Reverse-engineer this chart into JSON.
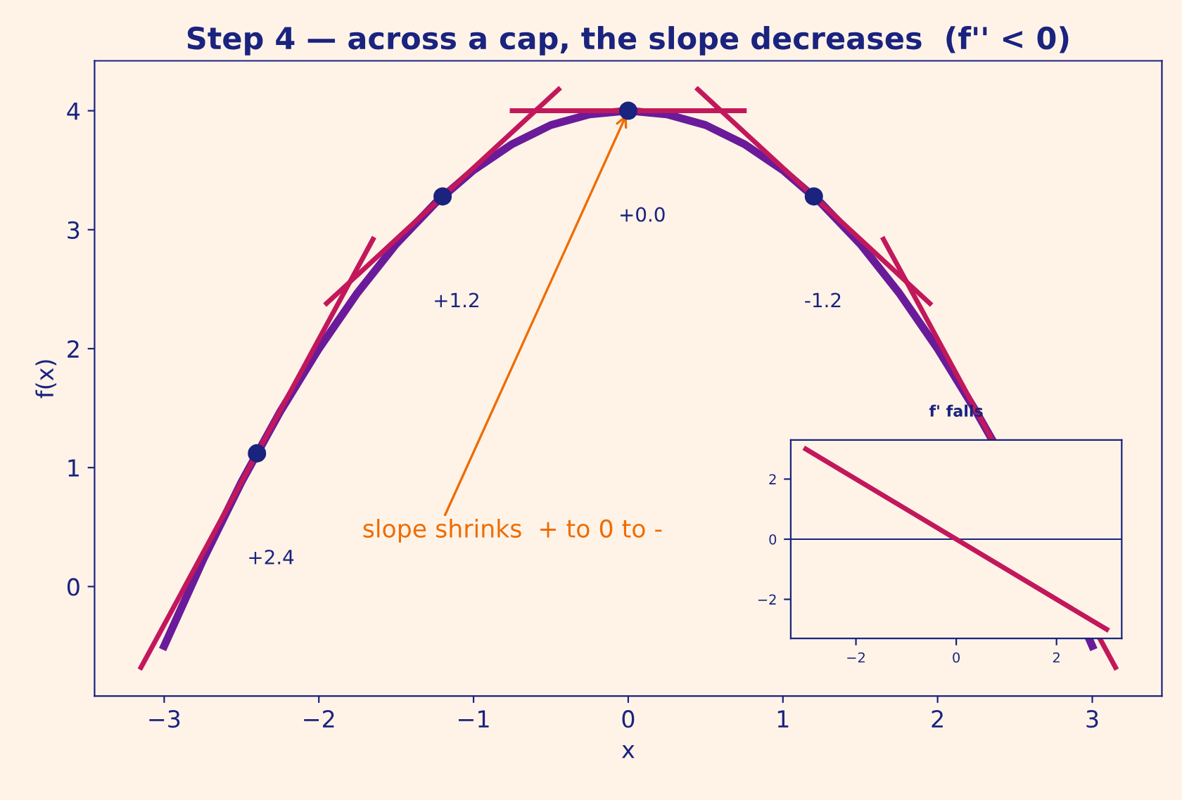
{
  "chart_data": [
    {
      "type": "line",
      "title": "Step 4 — across a cap, the slope decreases  (f'' < 0)",
      "xlabel": "x",
      "ylabel": "f(x)",
      "xlim": [
        -3.45,
        3.45
      ],
      "ylim": [
        -0.92,
        4.42
      ],
      "xticks": [
        {
          "value": -3,
          "label": "−3"
        },
        {
          "value": -2,
          "label": "−2"
        },
        {
          "value": -1,
          "label": "−1"
        },
        0,
        1,
        2,
        3
      ],
      "yticks": [
        0,
        1,
        2,
        3,
        4
      ],
      "grid": false,
      "legend": false,
      "series": [
        {
          "color": "#6a1b9a",
          "x": [
            -3,
            -2.75,
            -2.5,
            -2.25,
            -2,
            -1.75,
            -1.5,
            -1.25,
            -1,
            -0.75,
            -0.5,
            -0.25,
            0,
            0.25,
            0.5,
            0.75,
            1,
            1.25,
            1.5,
            1.75,
            2,
            2.25,
            2.35,
            2.5,
            2.75,
            2.98,
            3
          ],
          "values": [
            -0.5,
            0.22,
            0.88,
            1.47,
            2,
            2.47,
            2.88,
            3.22,
            3.5,
            3.72,
            3.88,
            3.97,
            4,
            3.97,
            3.88,
            3.72,
            3.5,
            3.22,
            2.88,
            2.47,
            2,
            1.47,
            1.24,
            null,
            null,
            -0.44,
            -0.5
          ]
        },
        {
          "type": "line",
          "color": "#c2185b",
          "x": [
            -3.15,
            -1.65
          ],
          "values": [
            -0.68,
            2.92
          ]
        },
        {
          "type": "line",
          "color": "#c2185b",
          "x": [
            -1.95,
            -0.45
          ],
          "values": [
            2.38,
            4.18
          ]
        },
        {
          "type": "line",
          "color": "#c2185b",
          "x": [
            -0.75,
            0.75
          ],
          "values": [
            4,
            4
          ]
        },
        {
          "type": "line",
          "color": "#c2185b",
          "x": [
            0.45,
            1.95
          ],
          "values": [
            4.18,
            2.38
          ]
        },
        {
          "type": "line",
          "color": "#c2185b",
          "x": [
            1.65,
            3.15
          ],
          "values": [
            2.92,
            -0.68
          ]
        },
        {
          "type": "scatter",
          "color": "#1a237e",
          "marker": "circle",
          "x": [
            -2.4,
            -1.2,
            0,
            1.2
          ],
          "values": [
            1.12,
            3.28,
            4,
            3.28
          ]
        }
      ],
      "annotations": [
        "+2.4",
        "+1.2",
        "+0.0",
        "-1.2",
        {
          "text": "slope shrinks  + to 0 to -",
          "x": 0,
          "y": 4
        }
      ]
    },
    {
      "type": "line",
      "title": "f' falls",
      "xlim": [
        -3.3,
        3.3
      ],
      "ylim": [
        -3.3,
        3.3
      ],
      "xticks": [
        {
          "value": -2,
          "label": "−2"
        },
        0,
        2
      ],
      "yticks": [
        {
          "value": -2,
          "label": "−2"
        },
        0,
        2
      ],
      "grid": false,
      "legend": false,
      "series": [
        {
          "color": "#c2185b",
          "x": [
            -3,
            3
          ],
          "values": [
            3,
            -3
          ]
        }
      ],
      "ref_lines": [
        {
          "axis": "y",
          "value": 0,
          "color": "#1a237e"
        }
      ]
    }
  ]
}
